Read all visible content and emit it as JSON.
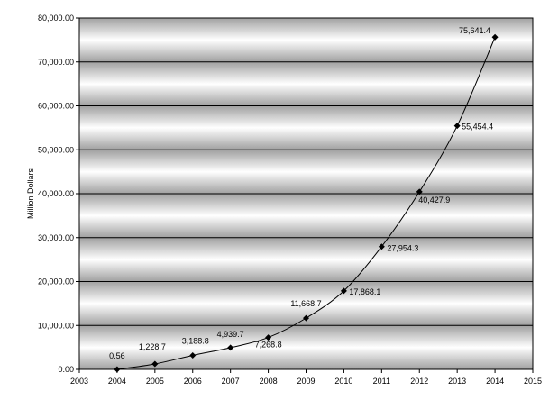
{
  "chart_data": {
    "type": "line",
    "title": "",
    "xlabel": "",
    "ylabel": "Million Dollars",
    "xlim": [
      2003,
      2015
    ],
    "ylim": [
      0,
      80000
    ],
    "x_ticks": [
      "2003",
      "2004",
      "2005",
      "2006",
      "2007",
      "2008",
      "2009",
      "2010",
      "2011",
      "2012",
      "2013",
      "2014",
      "2015"
    ],
    "y_ticks": [
      "0.00",
      "10,000.00",
      "20,000.00",
      "30,000.00",
      "40,000.00",
      "50,000.00",
      "60,000.00",
      "70,000.00",
      "80,000.00"
    ],
    "grid": true,
    "legend": "none",
    "series": [
      {
        "x": [
          2004,
          2005,
          2006,
          2007,
          2008,
          2009,
          2010,
          2011,
          2012,
          2013,
          2014
        ],
        "values": [
          0.56,
          1228.7,
          3188.8,
          4939.7,
          7268.8,
          11668.7,
          17868.1,
          27954.3,
          40427.9,
          55454.4,
          75641.4
        ],
        "labels": [
          "0.56",
          "1,228.7",
          "3,188.8",
          "4,939.7",
          "7,268.8",
          "11,668.7",
          "17,868.1",
          "27,954.3",
          "40,427.9",
          "55,454.4",
          "75,641.4"
        ]
      }
    ],
    "colors": {
      "line": "#000000",
      "plot_dark": "#a0a0a0",
      "plot_light": "#ffffff",
      "gridline": "#000000"
    }
  }
}
